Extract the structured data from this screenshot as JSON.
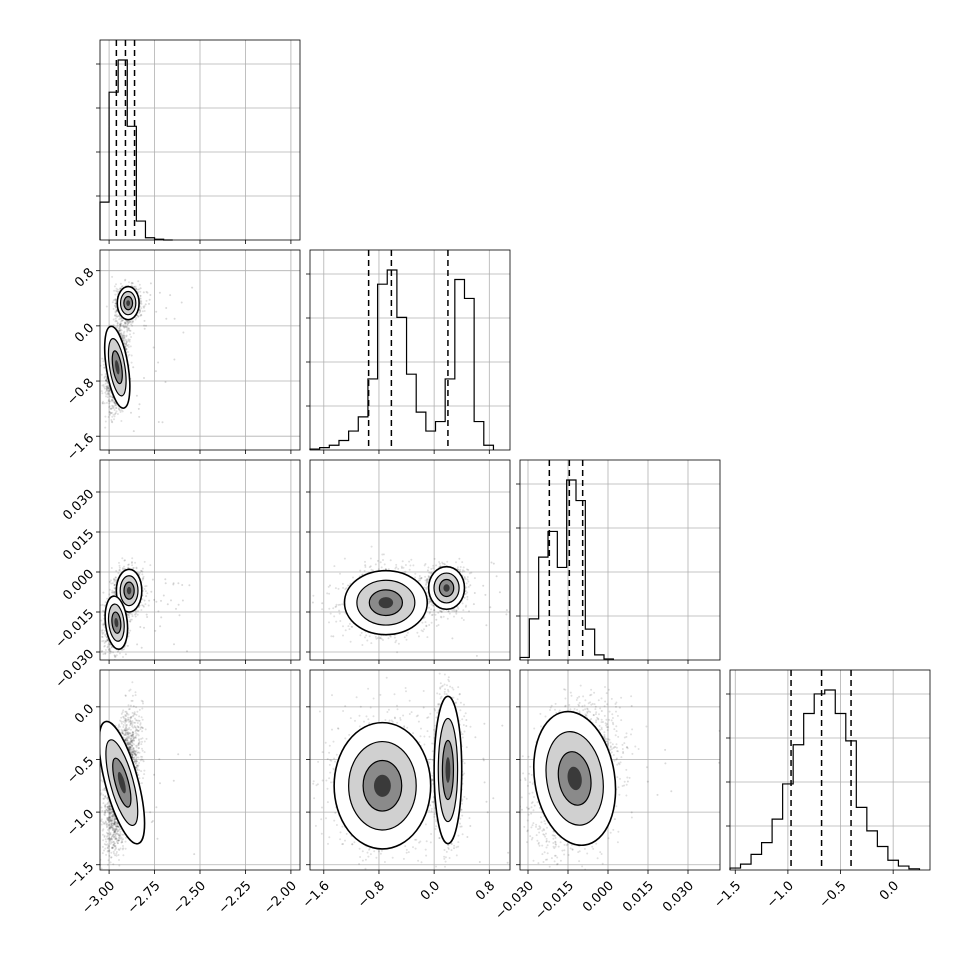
{
  "chart_data": {
    "type": "corner",
    "parameters": [
      {
        "range": [
          -3.05,
          -1.95
        ],
        "ticks": [
          -3.0,
          -2.75,
          -2.5,
          -2.25,
          -2.0
        ],
        "tick_labels": [
          "−3.00",
          "−2.75",
          "−2.50",
          "−2.25",
          "−2.00"
        ],
        "quantiles": [
          -2.96,
          -2.91,
          -2.86
        ],
        "histogram": {
          "edges": [
            -3.05,
            -3.0,
            -2.95,
            -2.9,
            -2.85,
            -2.8,
            -2.75,
            -2.7,
            -2.65
          ],
          "counts": [
            100,
            390,
            475,
            300,
            50,
            6,
            2,
            0
          ]
        }
      },
      {
        "range": [
          -1.8,
          1.1
        ],
        "ticks": [
          -1.6,
          -0.8,
          0.0,
          0.8
        ],
        "tick_labels": [
          "−1.6",
          "−0.8",
          "0.0",
          "0.8"
        ],
        "quantiles": [
          -0.95,
          -0.62,
          0.2
        ],
        "histogram": {
          "edges": [
            -1.8,
            -1.66,
            -1.52,
            -1.38,
            -1.24,
            -1.1,
            -0.96,
            -0.82,
            -0.68,
            -0.54,
            -0.4,
            -0.26,
            -0.12,
            0.02,
            0.16,
            0.3,
            0.44,
            0.58,
            0.72,
            0.86
          ],
          "counts": [
            2,
            5,
            10,
            20,
            40,
            70,
            150,
            350,
            380,
            280,
            160,
            80,
            40,
            60,
            150,
            360,
            320,
            60,
            10
          ]
        }
      },
      {
        "range": [
          -0.033,
          0.042
        ],
        "ticks": [
          -0.03,
          -0.015,
          0.0,
          0.015,
          0.03
        ],
        "tick_labels": [
          "−0.030",
          "−0.015",
          "0.000",
          "0.015",
          "0.030"
        ],
        "quantiles": [
          -0.022,
          -0.0145,
          -0.0095
        ],
        "histogram": {
          "edges": [
            -0.033,
            -0.0295,
            -0.026,
            -0.0225,
            -0.019,
            -0.0155,
            -0.012,
            -0.0085,
            -0.005,
            -0.0015,
            0.002
          ],
          "counts": [
            5,
            80,
            200,
            250,
            180,
            350,
            310,
            60,
            10,
            2
          ]
        }
      },
      {
        "range": [
          -1.55,
          0.35
        ],
        "ticks": [
          -1.5,
          -1.0,
          -0.5,
          0.0
        ],
        "tick_labels": [
          "−1.5",
          "−1.0",
          "−0.5",
          "0.0"
        ],
        "quantiles": [
          -0.97,
          -0.68,
          -0.4
        ],
        "histogram": {
          "edges": [
            -1.55,
            -1.45,
            -1.35,
            -1.25,
            -1.15,
            -1.05,
            -0.95,
            -0.85,
            -0.75,
            -0.65,
            -0.55,
            -0.45,
            -0.35,
            -0.25,
            -0.15,
            -0.05,
            0.05,
            0.15,
            0.25
          ],
          "counts": [
            5,
            15,
            40,
            70,
            130,
            220,
            320,
            400,
            450,
            460,
            400,
            330,
            160,
            100,
            60,
            25,
            10,
            3
          ]
        }
      }
    ],
    "pairs": [
      {
        "x_param": 0,
        "y_param": 1,
        "modes": [
          {
            "x": -2.895,
            "y": 0.33,
            "sx": 0.03,
            "sy": 0.12,
            "rho": 0.0,
            "weight": 0.45
          },
          {
            "x": -2.955,
            "y": -0.6,
            "sx": 0.03,
            "sy": 0.3,
            "rho": 0.3,
            "weight": 0.55
          }
        ]
      },
      {
        "x_param": 0,
        "y_param": 2,
        "modes": [
          {
            "x": -2.89,
            "y": -0.007,
            "sx": 0.035,
            "sy": 0.004,
            "rho": 0.0,
            "weight": 0.45
          },
          {
            "x": -2.96,
            "y": -0.019,
            "sx": 0.03,
            "sy": 0.005,
            "rho": 0.2,
            "weight": 0.55
          }
        ]
      },
      {
        "x_param": 1,
        "y_param": 2,
        "modes": [
          {
            "x": 0.18,
            "y": -0.006,
            "sx": 0.13,
            "sy": 0.004,
            "rho": 0.0,
            "weight": 0.45
          },
          {
            "x": -0.7,
            "y": -0.0115,
            "sx": 0.3,
            "sy": 0.006,
            "rho": 0.0,
            "weight": 0.55
          }
        ]
      },
      {
        "x_param": 0,
        "y_param": 3,
        "modes": [
          {
            "x": -2.93,
            "y": -0.72,
            "sx": 0.045,
            "sy": 0.3,
            "rho": 0.5,
            "weight": 1.0
          }
        ]
      },
      {
        "x_param": 1,
        "y_param": 3,
        "modes": [
          {
            "x": -0.75,
            "y": -0.75,
            "sx": 0.35,
            "sy": 0.3,
            "rho": 0.0,
            "weight": 0.55
          },
          {
            "x": 0.2,
            "y": -0.6,
            "sx": 0.1,
            "sy": 0.35,
            "rho": 0.0,
            "weight": 0.45
          }
        ]
      },
      {
        "x_param": 2,
        "y_param": 3,
        "modes": [
          {
            "x": -0.0125,
            "y": -0.68,
            "sx": 0.0075,
            "sy": 0.32,
            "rho": 0.3,
            "weight": 1.0
          }
        ]
      }
    ],
    "grid": true,
    "legend": "none"
  }
}
